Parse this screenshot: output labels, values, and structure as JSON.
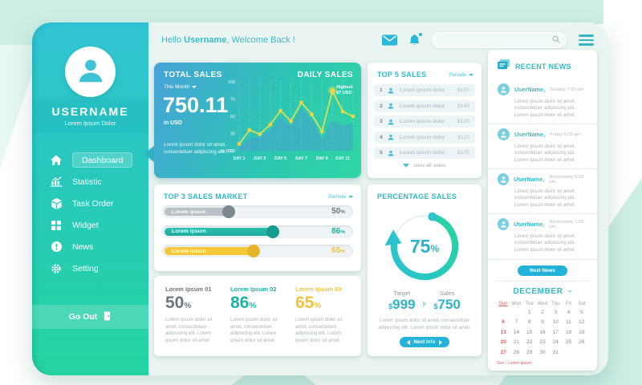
{
  "header": {
    "greeting": {
      "prefix": "Hello ",
      "name": "Username",
      "suffix": ", Welcome Back !"
    },
    "icons": {
      "mail": "mail-icon",
      "bell": "bell-icon",
      "search": "search-icon",
      "menu": "hamburger-menu-icon"
    }
  },
  "sidebar": {
    "username": "USERNAME",
    "subtitle": "Lorem Ipsum Dolor",
    "items": [
      {
        "label": "Dashboard",
        "icon": "home-icon",
        "active": true
      },
      {
        "label": "Statistic",
        "icon": "bar-chart-icon",
        "active": false
      },
      {
        "label": "Task Order",
        "icon": "cube-icon",
        "active": false
      },
      {
        "label": "Widget",
        "icon": "grid-icon",
        "active": false
      },
      {
        "label": "News",
        "icon": "alert-circle-icon",
        "active": false
      },
      {
        "label": "Setting",
        "icon": "gear-icon",
        "active": false
      }
    ],
    "logout_label": "Go Out",
    "logout_icon": "door-exit-icon"
  },
  "total_sales": {
    "title": "TOTAL SALES",
    "period_label": "This Month",
    "value": "750.11",
    "unit": "in USD",
    "description": "Lorem ipsum dolor sit amet, consectetuer adipiscing elit.",
    "chart_title": "DAILY SALES"
  },
  "chart_data": {
    "type": "line",
    "title": "DAILY SALES",
    "days": [
      1,
      2,
      3,
      4,
      5,
      6,
      7,
      8,
      9,
      10,
      11,
      12
    ],
    "x_tick_positions": [
      1,
      3,
      5,
      7,
      9,
      11
    ],
    "x_tick_labels": [
      "DAY 1",
      "DAY 3",
      "DAY 5",
      "DAY 7",
      "DAY 9",
      "DAY 11"
    ],
    "series": [
      {
        "name": "daily-sales-line",
        "values": [
          10,
          30,
          24,
          38,
          58,
          43,
          70,
          53,
          28,
          87,
          57,
          50
        ]
      },
      {
        "name": "daily-sales-area",
        "values": [
          4,
          18,
          20,
          30,
          48,
          36,
          62,
          46,
          16,
          44,
          36,
          40
        ]
      }
    ],
    "ylim": [
      0,
      100
    ],
    "yticks": [
      25,
      50,
      75,
      100
    ],
    "y_unit": "in USD",
    "annotation": {
      "day": 10,
      "line1": "Highest",
      "line2": "87 USD"
    },
    "grid": "vertical-dashed",
    "colors": {
      "line": "#dfe152",
      "dot": "#f6d441",
      "area": "rgba(80,150,215,0.45)",
      "grid": "rgba(255,255,255,0.35)"
    }
  },
  "top5": {
    "title": "TOP 5 SALES",
    "period_label": "Periode",
    "rows": [
      {
        "rank": "1",
        "name": "Lorem ipsum dolor",
        "value": "$155"
      },
      {
        "rank": "2",
        "name": "Lorem ipsum dolor",
        "value": "$145"
      },
      {
        "rank": "3",
        "name": "Lorem ipsum dolor",
        "value": "$125"
      },
      {
        "rank": "4",
        "name": "Lorem ipsum dolor",
        "value": "$115"
      },
      {
        "rank": "5",
        "name": "Lorem ipsum dolor",
        "value": "$105"
      }
    ],
    "footer_label": "view all sales"
  },
  "top3": {
    "title": "TOP 3 SALES MARKET",
    "period_label": "Periode",
    "bars": [
      {
        "label": "Lorem ipsum",
        "value": "50",
        "suffix": "%",
        "width": 34,
        "cls": "gray"
      },
      {
        "label": "Lorem ipsum",
        "value": "86",
        "suffix": "%",
        "width": 57,
        "cls": "teal"
      },
      {
        "label": "Lorem ipsum",
        "value": "65",
        "suffix": "%",
        "width": 47,
        "cls": "yellow"
      }
    ]
  },
  "stats": {
    "items": [
      {
        "label": "Lorem Ipsum 01",
        "value": "50",
        "suffix": "%",
        "body": "Lorem ipsum dolor sit amet, consectetuer adipiscing elit. Lorem ipsum dolor sit amet."
      },
      {
        "label": "Lorem Ipsum 02",
        "value": "86",
        "suffix": "%",
        "body": "Lorem ipsum dolor sit amet, consectetuer adipiscing elit. Lorem ipsum dolor sit amet."
      },
      {
        "label": "Lorem Ipsum 03",
        "value": "65",
        "suffix": "%",
        "body": "Lorem ipsum dolor sit amet, consectetuer adipiscing elit. Lorem ipsum dolor sit amet."
      }
    ]
  },
  "percentage": {
    "title": "PERCENTAGE SALES",
    "pct": 75,
    "value": "75",
    "suffix": "%",
    "target_label": "Target",
    "target_currency": "$",
    "target_value": "999",
    "sales_label": "Sales",
    "sales_currency": "$",
    "sales_value": "750",
    "body": "Lorem ipsum dolor sit amet, consectetuer adipiscing elit. Lorem ipsum dolor sit amet.",
    "button_label": "Next Info"
  },
  "news": {
    "title": "RECENT NEWS",
    "items": [
      {
        "name": "UserName,",
        "date": "Sunday 7:00 pm",
        "body": "Lorem ipsum dolor sit amet, consectetuer adipiscing elit. Lorem ipsum dolor sit amet"
      },
      {
        "name": "UserName,",
        "date": "Friday 5:50 pm",
        "body": "Lorem ipsum dolor sit amet, consectetuer adipiscing elit. Lorem ipsum dolor sit amet"
      },
      {
        "name": "UserName,",
        "date": "Wednesday 5:00 pm",
        "body": "Lorem ipsum dolor sit amet, consectetuer adipiscing elit. Lorem ipsum dolor sit amet"
      },
      {
        "name": "UserName,",
        "date": "Wednesday 1:00 pm",
        "body": "Lorem ipsum dolor sit amet, consectetuer adipiscing elit. Lorem ipsum dolor sit amet"
      }
    ],
    "button_label": "Next News"
  },
  "calendar": {
    "title": "DECEMBER",
    "weekdays": [
      {
        "label": "Sun",
        "cls": "sun"
      },
      {
        "label": "Mon"
      },
      {
        "label": "Tue"
      },
      {
        "label": "Wed"
      },
      {
        "label": "Thu"
      },
      {
        "label": "Fri"
      },
      {
        "label": "Sat"
      }
    ],
    "cells": [
      {
        "d": ""
      },
      {
        "d": ""
      },
      {
        "d": "1"
      },
      {
        "d": "2"
      },
      {
        "d": "3"
      },
      {
        "d": "4"
      },
      {
        "d": "5"
      },
      {
        "d": "6",
        "cls": "sun"
      },
      {
        "d": "7"
      },
      {
        "d": "8"
      },
      {
        "d": "9"
      },
      {
        "d": "10"
      },
      {
        "d": "11"
      },
      {
        "d": "12"
      },
      {
        "d": "13",
        "cls": "sun"
      },
      {
        "d": "14"
      },
      {
        "d": "15"
      },
      {
        "d": "16"
      },
      {
        "d": "17"
      },
      {
        "d": "18"
      },
      {
        "d": "19"
      },
      {
        "d": "20",
        "cls": "sun"
      },
      {
        "d": "21"
      },
      {
        "d": "22"
      },
      {
        "d": "23"
      },
      {
        "d": "24"
      },
      {
        "d": "25"
      },
      {
        "d": "26"
      },
      {
        "d": "27",
        "cls": "sun"
      },
      {
        "d": "28"
      },
      {
        "d": "29"
      },
      {
        "d": "30"
      },
      {
        "d": "31"
      },
      {
        "d": ""
      },
      {
        "d": ""
      }
    ],
    "footnote": "Sun : Lorem ipsum"
  },
  "colors": {
    "accent_teal": "#2fb9c6",
    "accent_green": "#25d4a0",
    "accent_blue": "#47a2d9",
    "accent_yellow": "#f0c23c",
    "sun_red": "#e05c5c",
    "mint_bg": "#cdeee5"
  }
}
